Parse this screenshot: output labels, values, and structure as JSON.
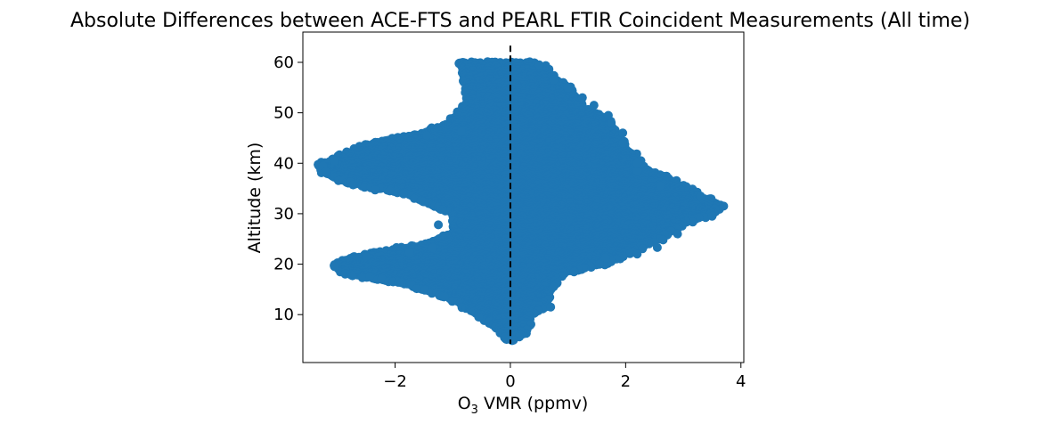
{
  "chart_data": {
    "type": "scatter",
    "title": "Absolute Differences between ACE-FTS and PEARL FTIR Coincident Measurements (All time)",
    "xlabel": "O3 VMR (ppmv)",
    "xlabel_parts": {
      "base": "O",
      "sub": "3",
      "rest": " VMR (ppmv)"
    },
    "ylabel": "Altitude (km)",
    "xlim": [
      -3.6,
      4.05
    ],
    "ylim": [
      0.5,
      66
    ],
    "xticks": [
      {
        "value": -2,
        "label": "−2"
      },
      {
        "value": 0,
        "label": "0"
      },
      {
        "value": 2,
        "label": "2"
      },
      {
        "value": 4,
        "label": "4"
      }
    ],
    "yticks": [
      {
        "value": 10,
        "label": "10"
      },
      {
        "value": 20,
        "label": "20"
      },
      {
        "value": 30,
        "label": "30"
      },
      {
        "value": 40,
        "label": "40"
      },
      {
        "value": 50,
        "label": "50"
      },
      {
        "value": 60,
        "label": "60"
      }
    ],
    "grid": false,
    "marker_color": "#1f77b4",
    "reference_line": {
      "x": 0,
      "y_range": [
        4.2,
        63.3
      ],
      "style": "dashed",
      "color": "#000000"
    },
    "envelope": [
      {
        "y": 60,
        "xmin": -0.85,
        "xmax": 0.45
      },
      {
        "y": 57,
        "xmin": -0.75,
        "xmax": 0.75
      },
      {
        "y": 54,
        "xmin": -0.7,
        "xmax": 1.05
      },
      {
        "y": 51,
        "xmin": -0.75,
        "xmax": 1.25
      },
      {
        "y": 48,
        "xmin": -1.05,
        "xmax": 1.75
      },
      {
        "y": 46,
        "xmin": -1.5,
        "xmax": 1.8
      },
      {
        "y": 44,
        "xmin": -2.4,
        "xmax": 1.9
      },
      {
        "y": 42,
        "xmin": -2.8,
        "xmax": 2.1
      },
      {
        "y": 40,
        "xmin": -3.25,
        "xmax": 2.2
      },
      {
        "y": 38,
        "xmin": -3.2,
        "xmax": 2.5
      },
      {
        "y": 36,
        "xmin": -2.8,
        "xmax": 2.9
      },
      {
        "y": 34,
        "xmin": -1.8,
        "xmax": 3.2
      },
      {
        "y": 32,
        "xmin": -1.4,
        "xmax": 3.6
      },
      {
        "y": 30,
        "xmin": -1.0,
        "xmax": 3.5
      },
      {
        "y": 28,
        "xmin": -0.9,
        "xmax": 3.0
      },
      {
        "y": 26,
        "xmin": -1.0,
        "xmax": 2.7
      },
      {
        "y": 24,
        "xmin": -1.4,
        "xmax": 2.4
      },
      {
        "y": 22,
        "xmin": -2.5,
        "xmax": 2.0
      },
      {
        "y": 20,
        "xmin": -3.05,
        "xmax": 1.6
      },
      {
        "y": 18,
        "xmin": -2.8,
        "xmax": 0.9
      },
      {
        "y": 16,
        "xmin": -1.8,
        "xmax": 0.7
      },
      {
        "y": 14,
        "xmin": -1.2,
        "xmax": 0.65
      },
      {
        "y": 12,
        "xmin": -0.8,
        "xmax": 0.6
      },
      {
        "y": 10,
        "xmin": -0.55,
        "xmax": 0.35
      },
      {
        "y": 8,
        "xmin": -0.3,
        "xmax": 0.3
      },
      {
        "y": 6,
        "xmin": -0.1,
        "xmax": 0.15
      },
      {
        "y": 5,
        "xmin": -0.05,
        "xmax": 0.05
      }
    ],
    "outliers": [
      {
        "x": -3.25,
        "y": 39.5
      },
      {
        "x": -3.2,
        "y": 38.3
      },
      {
        "x": -3.05,
        "y": 40.5
      },
      {
        "x": -3.05,
        "y": 19.5
      },
      {
        "x": 3.7,
        "y": 31.5
      },
      {
        "x": 3.5,
        "y": 29.5
      },
      {
        "x": 3.3,
        "y": 33.5
      },
      {
        "x": 2.9,
        "y": 26.0
      },
      {
        "x": 2.65,
        "y": 24.8
      },
      {
        "x": 2.55,
        "y": 23.3
      },
      {
        "x": 2.2,
        "y": 22.0
      },
      {
        "x": 2.6,
        "y": 35.5
      },
      {
        "x": 2.2,
        "y": 38.5
      },
      {
        "x": 2.2,
        "y": 40.0
      },
      {
        "x": 1.95,
        "y": 44.0
      },
      {
        "x": 1.95,
        "y": 46.0
      },
      {
        "x": 1.75,
        "y": 48.0
      },
      {
        "x": 1.7,
        "y": 49.5
      },
      {
        "x": 1.45,
        "y": 51.5
      },
      {
        "x": 1.25,
        "y": 53.0
      },
      {
        "x": 1.0,
        "y": 55.0
      },
      {
        "x": 0.75,
        "y": 56.5
      },
      {
        "x": 0.5,
        "y": 59.5
      },
      {
        "x": -0.85,
        "y": 46.3
      },
      {
        "x": -1.45,
        "y": 45.5
      },
      {
        "x": -1.25,
        "y": 27.8
      },
      {
        "x": -1.35,
        "y": 23.2
      },
      {
        "x": -1.75,
        "y": 22.3
      },
      {
        "x": -2.5,
        "y": 21.5
      },
      {
        "x": 0.7,
        "y": 11.5
      },
      {
        "x": 0.75,
        "y": 15.5
      },
      {
        "x": -1.15,
        "y": 13.5
      },
      {
        "x": -0.55,
        "y": 9.5
      },
      {
        "x": 1.75,
        "y": 20.5
      },
      {
        "x": 1.65,
        "y": 21.3
      }
    ]
  }
}
